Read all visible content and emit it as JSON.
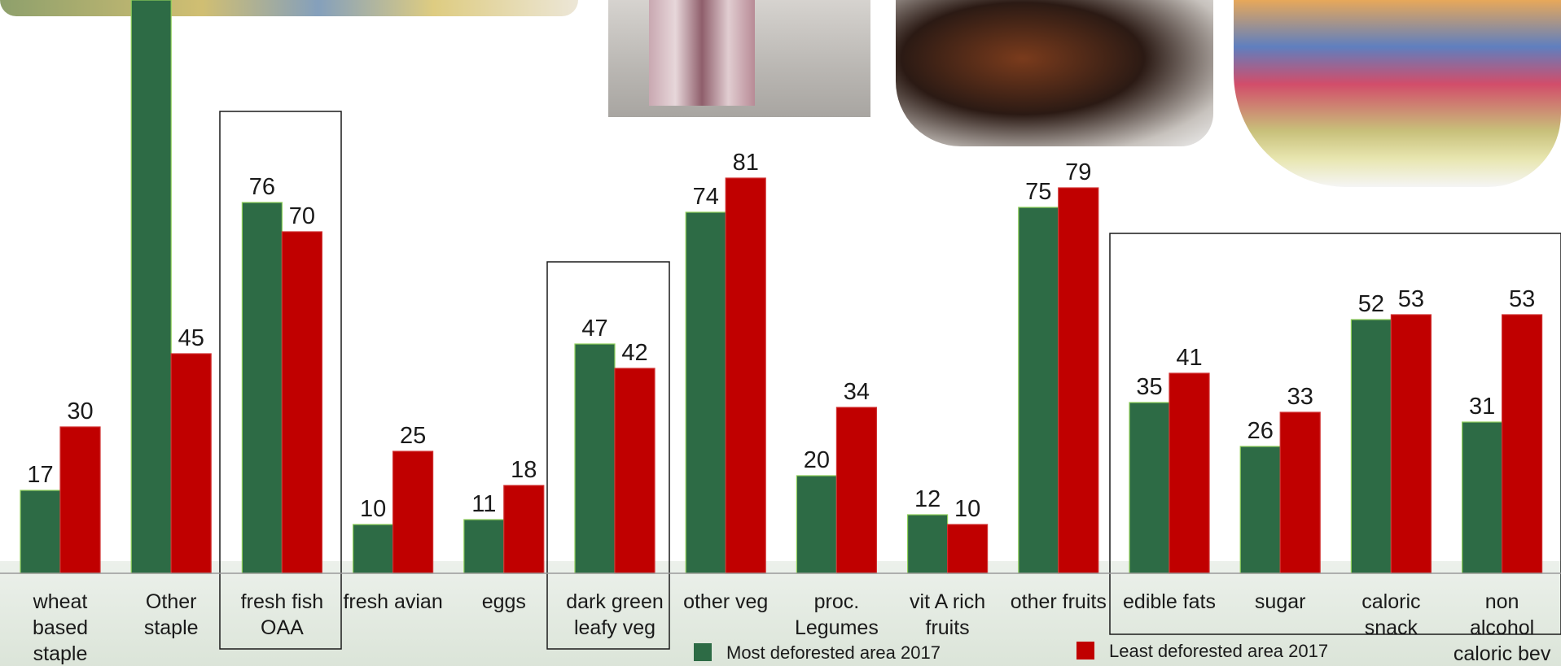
{
  "chart_data": {
    "type": "bar",
    "categories": [
      [
        "wheat",
        "based",
        "staple"
      ],
      [
        "Other",
        "staple"
      ],
      [
        "fresh fish",
        "OAA"
      ],
      [
        "fresh avian"
      ],
      [
        "eggs"
      ],
      [
        "dark green",
        "leafy veg"
      ],
      [
        "other veg"
      ],
      [
        "proc.",
        "Legumes"
      ],
      [
        "vit A rich",
        "fruits"
      ],
      [
        "other fruits"
      ],
      [
        "edible fats"
      ],
      [
        "sugar"
      ],
      [
        "caloric",
        "snack"
      ],
      [
        "non",
        "alcohol",
        "caloric bev"
      ]
    ],
    "series": [
      {
        "name": "Most deforested area 2017",
        "color": "#2d6b45",
        "values": [
          17,
          null,
          76,
          10,
          11,
          47,
          74,
          20,
          12,
          75,
          35,
          26,
          52,
          31
        ]
      },
      {
        "name": "Least deforested area 2017",
        "color": "#c00000",
        "values": [
          30,
          45,
          70,
          25,
          18,
          42,
          81,
          34,
          10,
          79,
          41,
          33,
          53,
          53
        ]
      }
    ],
    "ylim": [
      0,
      100
    ],
    "grid": false,
    "legend": "bottom",
    "highlighted_groups": [
      "fresh fish OAA",
      "dark green leafy veg",
      "edible fats to non alcohol caloric bev"
    ]
  }
}
